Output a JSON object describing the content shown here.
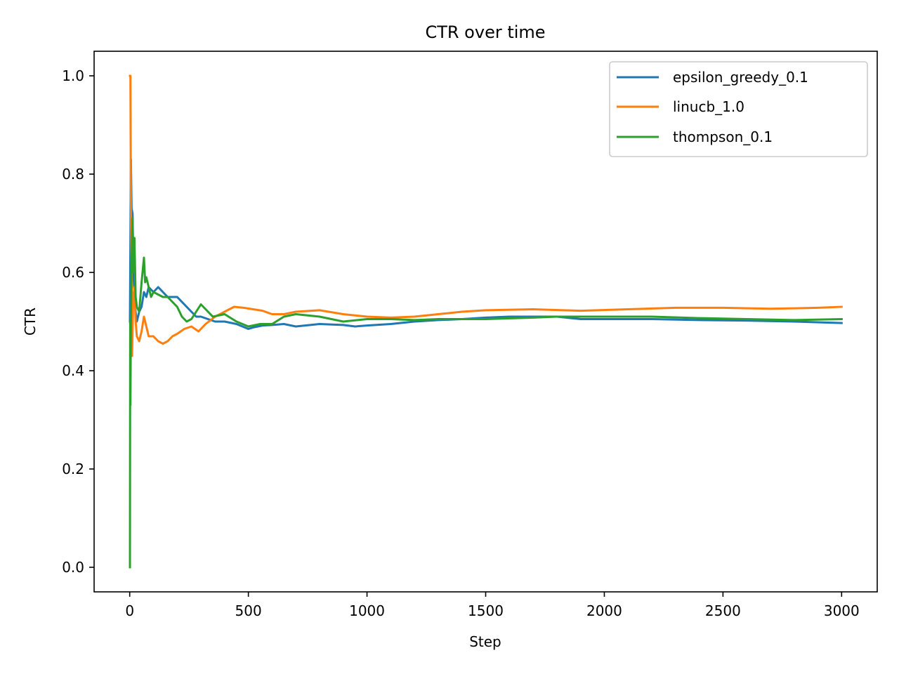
{
  "chart_data": {
    "type": "line",
    "title": "CTR over time",
    "xlabel": "Step",
    "ylabel": "CTR",
    "xlim": [
      -150,
      3150
    ],
    "ylim": [
      -0.05,
      1.05
    ],
    "xticks": [
      0,
      500,
      1000,
      1500,
      2000,
      2500,
      3000
    ],
    "xtick_labels": [
      "0",
      "500",
      "1000",
      "1500",
      "2000",
      "2500",
      "3000"
    ],
    "yticks": [
      0.0,
      0.2,
      0.4,
      0.6,
      0.8,
      1.0
    ],
    "ytick_labels": [
      "0.0",
      "0.2",
      "0.4",
      "0.6",
      "0.8",
      "1.0"
    ],
    "grid": false,
    "legend_position": "upper right",
    "series": [
      {
        "name": "epsilon_greedy_0.1",
        "color": "#1f77b4",
        "x": [
          1,
          3,
          5,
          8,
          12,
          16,
          20,
          25,
          30,
          40,
          50,
          60,
          70,
          80,
          100,
          120,
          140,
          160,
          180,
          200,
          220,
          240,
          260,
          280,
          300,
          330,
          360,
          400,
          450,
          500,
          520,
          560,
          600,
          650,
          700,
          800,
          900,
          950,
          1000,
          1100,
          1200,
          1300,
          1400,
          1500,
          1600,
          1700,
          1800,
          1900,
          2000,
          2200,
          2400,
          2600,
          2800,
          3000
        ],
        "y": [
          0.5,
          0.67,
          0.83,
          0.73,
          0.72,
          0.6,
          0.55,
          0.52,
          0.5,
          0.52,
          0.53,
          0.56,
          0.55,
          0.57,
          0.56,
          0.57,
          0.56,
          0.55,
          0.55,
          0.55,
          0.54,
          0.53,
          0.52,
          0.51,
          0.51,
          0.505,
          0.5,
          0.5,
          0.495,
          0.485,
          0.488,
          0.492,
          0.493,
          0.495,
          0.49,
          0.495,
          0.493,
          0.49,
          0.492,
          0.495,
          0.5,
          0.503,
          0.505,
          0.508,
          0.51,
          0.51,
          0.51,
          0.505,
          0.505,
          0.505,
          0.503,
          0.502,
          0.5,
          0.497
        ]
      },
      {
        "name": "linucb_1.0",
        "color": "#ff7f0e",
        "x": [
          1,
          3,
          5,
          8,
          10,
          15,
          20,
          25,
          30,
          40,
          50,
          60,
          70,
          80,
          100,
          120,
          140,
          160,
          180,
          200,
          230,
          260,
          290,
          320,
          360,
          400,
          440,
          480,
          520,
          560,
          600,
          650,
          700,
          800,
          900,
          1000,
          1100,
          1200,
          1300,
          1400,
          1500,
          1700,
          1900,
          2100,
          2300,
          2500,
          2700,
          2900,
          3000
        ],
        "y": [
          1.0,
          1.0,
          0.75,
          0.6,
          0.43,
          0.55,
          0.57,
          0.5,
          0.47,
          0.46,
          0.48,
          0.51,
          0.49,
          0.47,
          0.47,
          0.46,
          0.455,
          0.46,
          0.47,
          0.475,
          0.485,
          0.49,
          0.48,
          0.495,
          0.51,
          0.52,
          0.53,
          0.528,
          0.525,
          0.522,
          0.515,
          0.515,
          0.52,
          0.523,
          0.515,
          0.51,
          0.508,
          0.51,
          0.515,
          0.52,
          0.523,
          0.525,
          0.522,
          0.525,
          0.528,
          0.528,
          0.526,
          0.528,
          0.53
        ]
      },
      {
        "name": "thompson_0.1",
        "color": "#2ca02c",
        "x": [
          1,
          2,
          3,
          5,
          8,
          12,
          15,
          20,
          25,
          30,
          40,
          50,
          60,
          65,
          70,
          80,
          90,
          100,
          120,
          140,
          160,
          180,
          200,
          220,
          240,
          260,
          300,
          350,
          400,
          450,
          500,
          550,
          600,
          650,
          700,
          800,
          900,
          1000,
          1100,
          1200,
          1300,
          1400,
          1500,
          1700,
          1800,
          1900,
          2000,
          2200,
          2400,
          2600,
          2800,
          3000
        ],
        "y": [
          0.0,
          0.5,
          0.33,
          0.5,
          0.62,
          0.71,
          0.6,
          0.67,
          0.55,
          0.53,
          0.52,
          0.58,
          0.63,
          0.58,
          0.59,
          0.57,
          0.55,
          0.56,
          0.555,
          0.55,
          0.55,
          0.54,
          0.53,
          0.51,
          0.5,
          0.505,
          0.535,
          0.51,
          0.515,
          0.5,
          0.49,
          0.495,
          0.495,
          0.51,
          0.515,
          0.51,
          0.5,
          0.505,
          0.505,
          0.503,
          0.505,
          0.505,
          0.505,
          0.508,
          0.51,
          0.51,
          0.51,
          0.51,
          0.507,
          0.505,
          0.503,
          0.505
        ]
      }
    ]
  }
}
